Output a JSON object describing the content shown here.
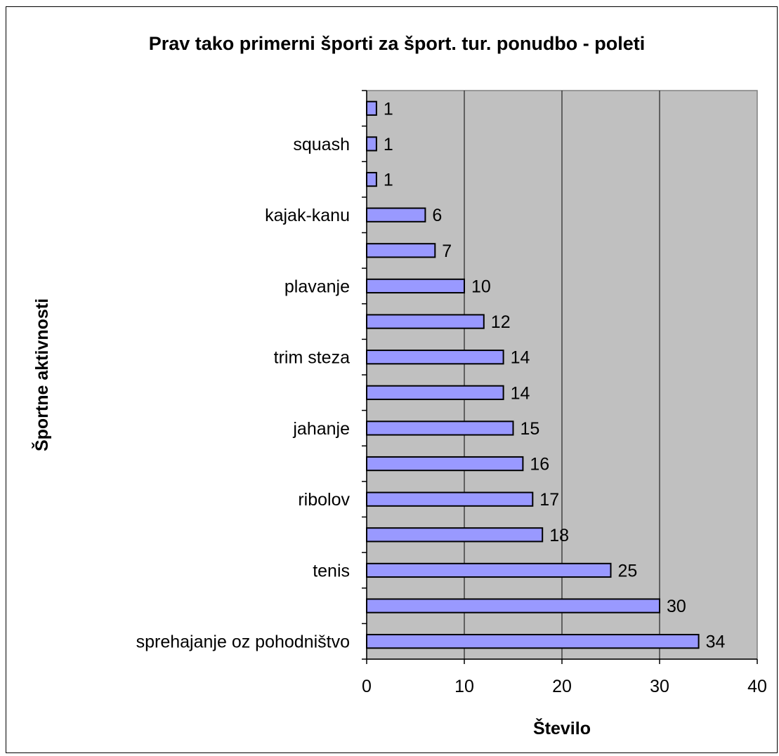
{
  "chart_data": {
    "type": "bar",
    "orientation": "horizontal",
    "title": "Prav tako primerni športi za šport. tur. ponudbo - poleti",
    "xlabel": "Število",
    "ylabel": "Športne aktivnosti",
    "categories": [
      "sprehajanje oz pohodništvo",
      "",
      "tenis",
      "",
      "ribolov",
      "",
      "jahanje",
      "",
      "trim steza",
      "",
      "plavanje",
      "",
      "kajak-kanu",
      "",
      "squash",
      ""
    ],
    "values": [
      34,
      30,
      25,
      18,
      17,
      16,
      15,
      14,
      14,
      12,
      10,
      7,
      6,
      1,
      1,
      1
    ],
    "xlim": [
      0,
      40
    ],
    "xticks": [
      0,
      10,
      20,
      30,
      40
    ],
    "grid": true,
    "legend": "none",
    "colors": {
      "bar_fill": "#9999ff",
      "bar_stroke": "#000000",
      "plot_bg": "#c0c0c0"
    }
  }
}
